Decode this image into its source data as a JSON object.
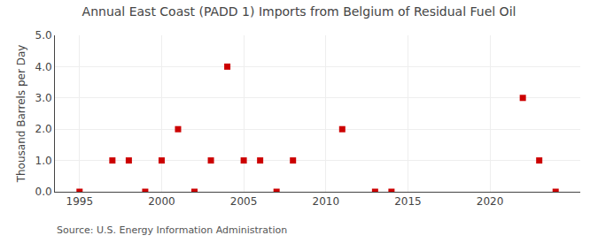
{
  "chart_data": {
    "type": "scatter",
    "title": "Annual East Coast (PADD 1) Imports from Belgium of Residual Fuel Oil",
    "ylabel": "Thousand Barrels per Day",
    "annotations": [
      "Source: U.S. Energy Information Administration"
    ],
    "x": [
      1995,
      1997,
      1998,
      1999,
      2000,
      2001,
      2002,
      2003,
      2004,
      2005,
      2006,
      2007,
      2008,
      2011,
      2013,
      2014,
      2022,
      2023,
      2024
    ],
    "values": [
      0,
      1,
      1,
      0,
      1,
      2,
      0,
      1,
      4,
      1,
      1,
      0,
      1,
      2,
      0,
      0,
      3,
      1,
      0
    ],
    "color": "#cc0000",
    "marker": "square",
    "xlim": [
      1993.5,
      2025.5
    ],
    "ylim": [
      0.0,
      5.0
    ],
    "xticks": [
      1995,
      2000,
      2005,
      2010,
      2015,
      2020
    ],
    "yticks": [
      {
        "value": 0,
        "label": "0.0"
      },
      {
        "value": 1,
        "label": "1.0"
      },
      {
        "value": 2,
        "label": "2.0"
      },
      {
        "value": 3,
        "label": "3.0"
      },
      {
        "value": 4,
        "label": "4.0"
      },
      {
        "value": 5,
        "label": "5.0"
      }
    ],
    "grid": true
  }
}
